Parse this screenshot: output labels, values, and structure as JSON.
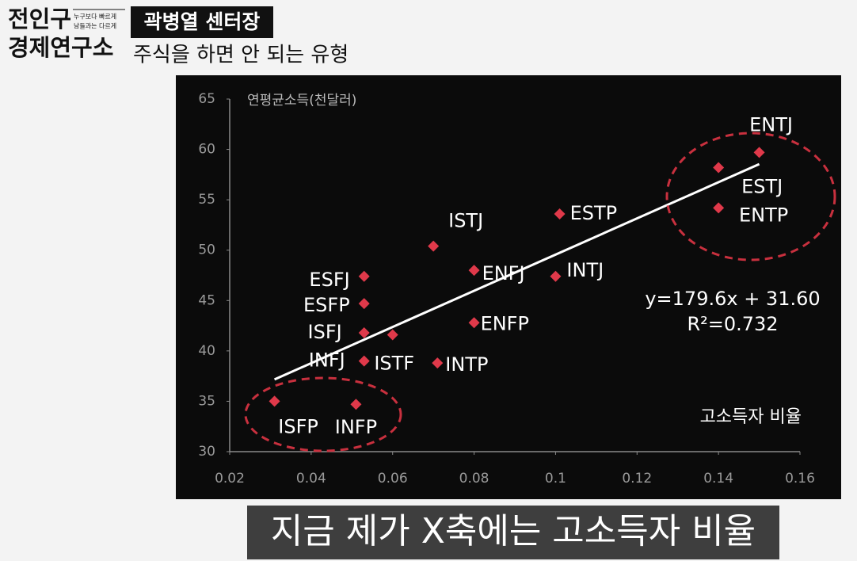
{
  "header": {
    "logo": [
      "전인구",
      "경제연구소"
    ],
    "tagline": [
      "누구보다 빠르게",
      "남들과는 다르게"
    ],
    "badge": "곽병열 센터장",
    "subtitle": "주식을 하면 안 되는 유형"
  },
  "chart_data": {
    "type": "scatter",
    "ylabel": "연평균소득(천달러)",
    "xlabel": "고소득자 비율",
    "xlim": [
      0.02,
      0.16
    ],
    "xticks": [
      0.02,
      0.04,
      0.06,
      0.08,
      0.1,
      0.12,
      0.14,
      0.16
    ],
    "ylim": [
      30,
      65
    ],
    "yticks": [
      30,
      35,
      40,
      45,
      50,
      55,
      60,
      65
    ],
    "color": "#e0394a",
    "points": [
      {
        "label": "ENTJ",
        "x": 0.15,
        "y": 59.7
      },
      {
        "label": "ESTJ",
        "x": 0.14,
        "y": 58.2
      },
      {
        "label": "ENTP",
        "x": 0.14,
        "y": 54.2
      },
      {
        "label": "ESTP",
        "x": 0.101,
        "y": 53.6
      },
      {
        "label": "ISTJ",
        "x": 0.07,
        "y": 50.4
      },
      {
        "label": "ENFJ",
        "x": 0.08,
        "y": 48.0
      },
      {
        "label": "INTJ",
        "x": 0.1,
        "y": 47.4
      },
      {
        "label": "ESFJ",
        "x": 0.053,
        "y": 47.4
      },
      {
        "label": "ESFP",
        "x": 0.053,
        "y": 44.7
      },
      {
        "label": "ISFJ",
        "x": 0.053,
        "y": 41.8
      },
      {
        "label": "ISTF",
        "x": 0.06,
        "y": 41.6
      },
      {
        "label": "INFJ",
        "x": 0.053,
        "y": 39.0
      },
      {
        "label": "ENFP",
        "x": 0.08,
        "y": 42.8
      },
      {
        "label": "INTP",
        "x": 0.071,
        "y": 38.8
      },
      {
        "label": "ISFP",
        "x": 0.031,
        "y": 35.0
      },
      {
        "label": "INFP",
        "x": 0.051,
        "y": 34.7
      }
    ],
    "trendline": {
      "equation": "y=179.6x + 31.60",
      "r2": "R²=0.732",
      "slope": 179.6,
      "intercept": 31.6
    }
  },
  "caption": "지금 제가 X축에는 고소득자 비율"
}
